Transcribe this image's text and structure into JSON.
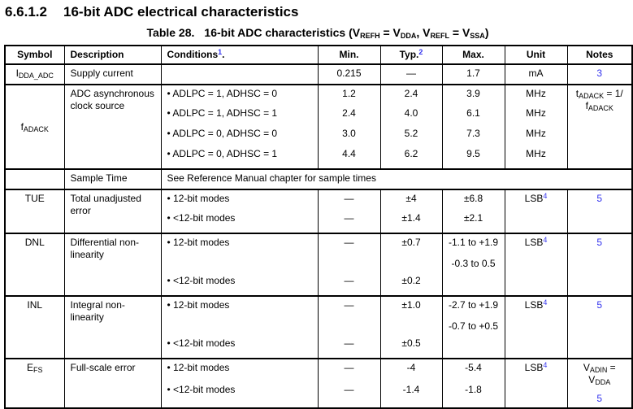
{
  "heading": {
    "number": "6.6.1.2",
    "title": "16-bit ADC electrical characteristics"
  },
  "caption": {
    "label": "Table 28.",
    "text": "16-bit ADC characteristics (V~REFH~ = V~DDA~, V~REFL~ = V~SSA~)"
  },
  "colors": {
    "link": "#3333ee",
    "text": "#000000",
    "border": "#000000",
    "background": "#ffffff"
  },
  "table": {
    "columns": [
      {
        "label": "Symbol"
      },
      {
        "label": "Description"
      },
      {
        "label": "Conditions^1^."
      },
      {
        "label": "Min."
      },
      {
        "label": "Typ.^2^"
      },
      {
        "label": "Max."
      },
      {
        "label": "Unit"
      },
      {
        "label": "Notes"
      }
    ],
    "groups": [
      {
        "symbol": "I~DDA_ADC~",
        "description": "Supply current",
        "rows": [
          {
            "condition": "",
            "min": "0.215",
            "typ": "—",
            "max": "1.7",
            "unit": "mA"
          }
        ],
        "notes": [
          {
            "text": "3",
            "blue": true
          }
        ]
      },
      {
        "symbol": "f~ADACK~",
        "symbol_valign": "middle",
        "description": "ADC asynchronous clock source",
        "rows": [
          {
            "condition": "•  ADLPC = 1, ADHSC = 0",
            "min": "1.2",
            "typ": "2.4",
            "max": "3.9",
            "unit": "MHz"
          },
          {
            "condition": "•  ADLPC = 1, ADHSC = 1",
            "min": "2.4",
            "typ": "4.0",
            "max": "6.1",
            "unit": "MHz"
          },
          {
            "condition": "•  ADLPC = 0, ADHSC = 0",
            "min": "3.0",
            "typ": "5.2",
            "max": "7.3",
            "unit": "MHz"
          },
          {
            "condition": "•  ADLPC = 0, ADHSC = 1",
            "min": "4.4",
            "typ": "6.2",
            "max": "9.5",
            "unit": "MHz"
          }
        ],
        "notes": [
          {
            "text": "t~ADACK~ = 1/",
            "blue": false
          },
          {
            "text": "f~ADACK~",
            "blue": false
          }
        ]
      },
      {
        "type": "span",
        "symbol": "",
        "description": "Sample Time",
        "span_text": "See Reference Manual chapter for sample times"
      },
      {
        "symbol": "TUE",
        "description": "Total unadjusted error",
        "unit": "LSB^4^",
        "rows": [
          {
            "condition": "•  12-bit modes",
            "min": "—",
            "typ": "±4",
            "max": "±6.8"
          },
          {
            "condition": "•  <12-bit modes",
            "min": "—",
            "typ": "±1.4",
            "max": "±2.1"
          }
        ],
        "notes": [
          {
            "text": "5",
            "blue": true
          }
        ]
      },
      {
        "symbol": "DNL",
        "description": "Differential non-linearity",
        "unit": "LSB^4^",
        "rows": [
          {
            "condition": "•  12-bit modes",
            "min": "—",
            "typ": "±0.7",
            "max": [
              "-1.1 to +1.9",
              "-0.3 to 0.5"
            ]
          },
          {
            "condition": "•  <12-bit modes",
            "min": "—",
            "typ": "±0.2",
            "max": ""
          }
        ],
        "notes": [
          {
            "text": "5",
            "blue": true
          }
        ]
      },
      {
        "symbol": "INL",
        "description": "Integral non-linearity",
        "unit": "LSB^4^",
        "rows": [
          {
            "condition": "•  12-bit modes",
            "min": "—",
            "typ": "±1.0",
            "max": [
              "-2.7 to +1.9",
              "-0.7 to +0.5"
            ]
          },
          {
            "condition": "•  <12-bit modes",
            "min": "—",
            "typ": "±0.5",
            "max": ""
          }
        ],
        "notes": [
          {
            "text": "5",
            "blue": true
          }
        ]
      },
      {
        "symbol": "E~FS~",
        "description": "Full-scale error",
        "unit": "LSB^4^",
        "rows": [
          {
            "condition": "•  12-bit modes",
            "min": "—",
            "typ": "-4",
            "max": "-5.4"
          },
          {
            "condition": "•  <12-bit modes",
            "min": "—",
            "typ": "-1.4",
            "max": "-1.8"
          }
        ],
        "notes": [
          {
            "text": "V~ADIN~ =",
            "blue": false
          },
          {
            "text": "V~DDA~",
            "blue": false
          },
          {
            "text": "5",
            "blue": true,
            "gap": true
          }
        ]
      }
    ]
  }
}
